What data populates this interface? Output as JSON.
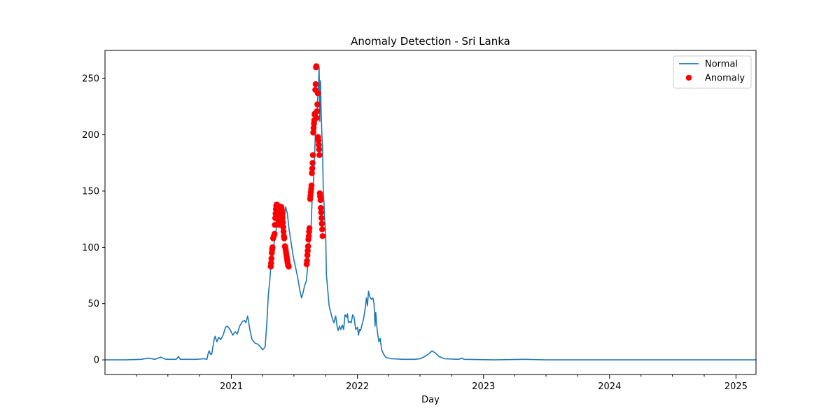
{
  "chart_data": {
    "type": "line",
    "title": "Anomaly Detection - Sri Lanka",
    "xlabel": "Day",
    "ylabel": "",
    "x_range": [
      "2020-01-01",
      "2025-02-28"
    ],
    "ylim": [
      -13,
      275
    ],
    "yticks": [
      0,
      50,
      100,
      150,
      200,
      250
    ],
    "xticks": [
      {
        "date": "2021-01-01",
        "label": "2021"
      },
      {
        "date": "2022-01-01",
        "label": "2022"
      },
      {
        "date": "2023-01-01",
        "label": "2023"
      },
      {
        "date": "2024-01-01",
        "label": "2024"
      },
      {
        "date": "2025-01-01",
        "label": "2025"
      }
    ],
    "minor_xticks": [
      "2020-04-01",
      "2020-07-01",
      "2020-10-01",
      "2021-04-01",
      "2021-07-01",
      "2021-10-01",
      "2022-04-01",
      "2022-07-01",
      "2022-10-01",
      "2023-04-01",
      "2023-07-01",
      "2023-10-01",
      "2024-04-01",
      "2024-07-01",
      "2024-10-01"
    ],
    "grid": false,
    "legend_position": "top-right",
    "series": [
      {
        "name": "Normal",
        "kind": "line",
        "color": "#1f77b4",
        "points": [
          [
            "2020-01-01",
            0
          ],
          [
            "2020-03-01",
            0
          ],
          [
            "2020-04-15",
            0.5
          ],
          [
            "2020-05-05",
            1.5
          ],
          [
            "2020-05-25",
            0.5
          ],
          [
            "2020-06-10",
            2.5
          ],
          [
            "2020-06-25",
            0.5
          ],
          [
            "2020-07-25",
            0.5
          ],
          [
            "2020-08-01",
            3
          ],
          [
            "2020-08-06",
            0.5
          ],
          [
            "2020-09-20",
            0.5
          ],
          [
            "2020-10-15",
            1
          ],
          [
            "2020-10-22",
            0.5
          ],
          [
            "2020-10-26",
            6
          ],
          [
            "2020-10-29",
            8
          ],
          [
            "2020-11-01",
            5
          ],
          [
            "2020-11-05",
            5
          ],
          [
            "2020-11-12",
            18
          ],
          [
            "2020-11-15",
            21
          ],
          [
            "2020-11-20",
            16
          ],
          [
            "2020-11-25",
            20
          ],
          [
            "2020-12-01",
            18
          ],
          [
            "2020-12-08",
            22
          ],
          [
            "2020-12-15",
            29
          ],
          [
            "2020-12-20",
            30
          ],
          [
            "2020-12-28",
            27
          ],
          [
            "2021-01-05",
            22
          ],
          [
            "2021-01-12",
            25
          ],
          [
            "2021-01-18",
            23
          ],
          [
            "2021-01-25",
            30
          ],
          [
            "2021-02-02",
            34
          ],
          [
            "2021-02-08",
            35
          ],
          [
            "2021-02-12",
            33
          ],
          [
            "2021-02-17",
            39
          ],
          [
            "2021-02-24",
            26
          ],
          [
            "2021-03-02",
            18
          ],
          [
            "2021-03-10",
            15
          ],
          [
            "2021-03-18",
            14
          ],
          [
            "2021-03-25",
            12
          ],
          [
            "2021-04-01",
            9
          ],
          [
            "2021-04-05",
            10
          ],
          [
            "2021-04-09",
            12
          ],
          [
            "2021-04-14",
            35
          ],
          [
            "2021-04-18",
            58
          ],
          [
            "2021-04-22",
            70
          ],
          [
            "2021-04-25",
            82
          ],
          [
            "2021-05-02",
            98
          ],
          [
            "2021-05-09",
            112
          ],
          [
            "2021-05-16",
            128
          ],
          [
            "2021-05-21",
            138
          ],
          [
            "2021-05-27",
            134
          ],
          [
            "2021-06-02",
            121
          ],
          [
            "2021-06-07",
            136
          ],
          [
            "2021-06-12",
            130
          ],
          [
            "2021-06-17",
            116
          ],
          [
            "2021-06-21",
            108
          ],
          [
            "2021-06-25",
            100
          ],
          [
            "2021-06-29",
            92
          ],
          [
            "2021-07-03",
            86
          ],
          [
            "2021-07-06",
            82
          ],
          [
            "2021-07-12",
            73
          ],
          [
            "2021-07-18",
            62
          ],
          [
            "2021-07-23",
            55
          ],
          [
            "2021-07-27",
            59
          ],
          [
            "2021-08-01",
            66
          ],
          [
            "2021-08-06",
            70
          ],
          [
            "2021-08-09",
            80
          ],
          [
            "2021-08-12",
            90
          ],
          [
            "2021-08-15",
            105
          ],
          [
            "2021-08-18",
            115
          ],
          [
            "2021-08-20",
            120
          ],
          [
            "2021-08-23",
            145
          ],
          [
            "2021-08-26",
            155
          ],
          [
            "2021-08-29",
            172
          ],
          [
            "2021-09-01",
            200
          ],
          [
            "2021-09-04",
            212
          ],
          [
            "2021-09-07",
            228
          ],
          [
            "2021-09-10",
            244
          ],
          [
            "2021-09-12",
            260
          ],
          [
            "2021-09-14",
            212
          ],
          [
            "2021-09-16",
            248
          ],
          [
            "2021-09-18",
            219
          ],
          [
            "2021-09-20",
            200
          ],
          [
            "2021-09-22",
            188
          ],
          [
            "2021-09-24",
            150
          ],
          [
            "2021-09-26",
            140
          ],
          [
            "2021-09-28",
            125
          ],
          [
            "2021-10-01",
            112
          ],
          [
            "2021-10-03",
            76
          ],
          [
            "2021-10-07",
            62
          ],
          [
            "2021-10-11",
            48
          ],
          [
            "2021-10-15",
            43
          ],
          [
            "2021-10-20",
            37
          ],
          [
            "2021-10-25",
            33
          ],
          [
            "2021-10-30",
            39
          ],
          [
            "2021-11-03",
            30
          ],
          [
            "2021-11-06",
            26
          ],
          [
            "2021-11-10",
            30
          ],
          [
            "2021-11-14",
            27
          ],
          [
            "2021-11-18",
            31
          ],
          [
            "2021-11-22",
            27
          ],
          [
            "2021-11-26",
            40
          ],
          [
            "2021-11-30",
            38
          ],
          [
            "2021-12-03",
            41
          ],
          [
            "2021-12-06",
            33
          ],
          [
            "2021-12-10",
            34
          ],
          [
            "2021-12-14",
            33
          ],
          [
            "2021-12-18",
            40
          ],
          [
            "2021-12-22",
            38
          ],
          [
            "2021-12-27",
            27
          ],
          [
            "2022-01-01",
            29
          ],
          [
            "2022-01-04",
            22
          ],
          [
            "2022-01-07",
            27
          ],
          [
            "2022-01-10",
            26
          ],
          [
            "2022-01-14",
            31
          ],
          [
            "2022-01-19",
            37
          ],
          [
            "2022-01-24",
            47
          ],
          [
            "2022-01-27",
            55
          ],
          [
            "2022-01-30",
            48
          ],
          [
            "2022-02-02",
            61
          ],
          [
            "2022-02-06",
            56
          ],
          [
            "2022-02-10",
            54
          ],
          [
            "2022-02-15",
            55
          ],
          [
            "2022-02-18",
            50
          ],
          [
            "2022-02-21",
            30
          ],
          [
            "2022-02-23",
            42
          ],
          [
            "2022-02-26",
            30
          ],
          [
            "2022-03-01",
            22
          ],
          [
            "2022-03-04",
            16
          ],
          [
            "2022-03-08",
            19
          ],
          [
            "2022-03-12",
            9
          ],
          [
            "2022-03-18",
            5
          ],
          [
            "2022-03-25",
            2
          ],
          [
            "2022-04-10",
            1
          ],
          [
            "2022-05-15",
            0.5
          ],
          [
            "2022-06-15",
            0.5
          ],
          [
            "2022-07-01",
            1
          ],
          [
            "2022-07-15",
            3
          ],
          [
            "2022-07-25",
            5
          ],
          [
            "2022-08-05",
            8
          ],
          [
            "2022-08-15",
            6
          ],
          [
            "2022-08-25",
            3
          ],
          [
            "2022-09-10",
            1
          ],
          [
            "2022-10-20",
            0.5
          ],
          [
            "2022-11-01",
            1.5
          ],
          [
            "2022-11-05",
            0.5
          ],
          [
            "2023-02-01",
            0
          ],
          [
            "2023-05-01",
            0.5
          ],
          [
            "2023-07-01",
            0
          ],
          [
            "2025-02-28",
            0
          ]
        ]
      },
      {
        "name": "Anomaly",
        "kind": "scatter",
        "color": "#ff0000",
        "points": [
          [
            "2021-04-25",
            83
          ],
          [
            "2021-04-26",
            86
          ],
          [
            "2021-04-27",
            90
          ],
          [
            "2021-04-28",
            95
          ],
          [
            "2021-04-29",
            98
          ],
          [
            "2021-04-30",
            100
          ],
          [
            "2021-05-02",
            108
          ],
          [
            "2021-05-04",
            110
          ],
          [
            "2021-05-06",
            112
          ],
          [
            "2021-05-07",
            120
          ],
          [
            "2021-05-08",
            126
          ],
          [
            "2021-05-09",
            130
          ],
          [
            "2021-05-10",
            134
          ],
          [
            "2021-05-11",
            137
          ],
          [
            "2021-05-12",
            138
          ],
          [
            "2021-05-13",
            138
          ],
          [
            "2021-05-14",
            137
          ],
          [
            "2021-05-15",
            135
          ],
          [
            "2021-05-16",
            130
          ],
          [
            "2021-05-17",
            124
          ],
          [
            "2021-05-18",
            120
          ],
          [
            "2021-05-20",
            128
          ],
          [
            "2021-05-22",
            133
          ],
          [
            "2021-05-24",
            136
          ],
          [
            "2021-05-25",
            136
          ],
          [
            "2021-05-26",
            135
          ],
          [
            "2021-05-27",
            133
          ],
          [
            "2021-05-28",
            130
          ],
          [
            "2021-05-29",
            126
          ],
          [
            "2021-05-30",
            122
          ],
          [
            "2021-05-31",
            118
          ],
          [
            "2021-06-01",
            114
          ],
          [
            "2021-06-02",
            110
          ],
          [
            "2021-06-03",
            108
          ],
          [
            "2021-06-05",
            101
          ],
          [
            "2021-06-06",
            100
          ],
          [
            "2021-06-07",
            98
          ],
          [
            "2021-06-08",
            96
          ],
          [
            "2021-06-09",
            94
          ],
          [
            "2021-06-10",
            92
          ],
          [
            "2021-06-11",
            90
          ],
          [
            "2021-06-12",
            88
          ],
          [
            "2021-06-13",
            86
          ],
          [
            "2021-06-14",
            84
          ],
          [
            "2021-06-16",
            83
          ],
          [
            "2021-08-07",
            85
          ],
          [
            "2021-08-08",
            88
          ],
          [
            "2021-08-09",
            93
          ],
          [
            "2021-08-10",
            97
          ],
          [
            "2021-08-11",
            101
          ],
          [
            "2021-08-12",
            107
          ],
          [
            "2021-08-13",
            110
          ],
          [
            "2021-08-14",
            114
          ],
          [
            "2021-08-15",
            117
          ],
          [
            "2021-08-17",
            143
          ],
          [
            "2021-08-18",
            146
          ],
          [
            "2021-08-19",
            149
          ],
          [
            "2021-08-20",
            152
          ],
          [
            "2021-08-21",
            155
          ],
          [
            "2021-08-22",
            166
          ],
          [
            "2021-08-23",
            170
          ],
          [
            "2021-08-24",
            175
          ],
          [
            "2021-08-25",
            182
          ],
          [
            "2021-08-26",
            202
          ],
          [
            "2021-08-27",
            206
          ],
          [
            "2021-08-28",
            210
          ],
          [
            "2021-08-29",
            213
          ],
          [
            "2021-08-30",
            218
          ],
          [
            "2021-08-31",
            219
          ],
          [
            "2021-09-01",
            240
          ],
          [
            "2021-09-02",
            245
          ],
          [
            "2021-09-03",
            260
          ],
          [
            "2021-09-04",
            261
          ],
          [
            "2021-09-05",
            215
          ],
          [
            "2021-09-06",
            221
          ],
          [
            "2021-09-07",
            227
          ],
          [
            "2021-09-08",
            237
          ],
          [
            "2021-09-09",
            198
          ],
          [
            "2021-09-10",
            195
          ],
          [
            "2021-09-11",
            191
          ],
          [
            "2021-09-12",
            187
          ],
          [
            "2021-09-13",
            182
          ],
          [
            "2021-09-14",
            148
          ],
          [
            "2021-09-15",
            145
          ],
          [
            "2021-09-16",
            142
          ],
          [
            "2021-09-17",
            135
          ],
          [
            "2021-09-18",
            131
          ],
          [
            "2021-09-19",
            126
          ],
          [
            "2021-09-20",
            121
          ],
          [
            "2021-09-21",
            116
          ],
          [
            "2021-09-22",
            110
          ]
        ]
      }
    ]
  }
}
